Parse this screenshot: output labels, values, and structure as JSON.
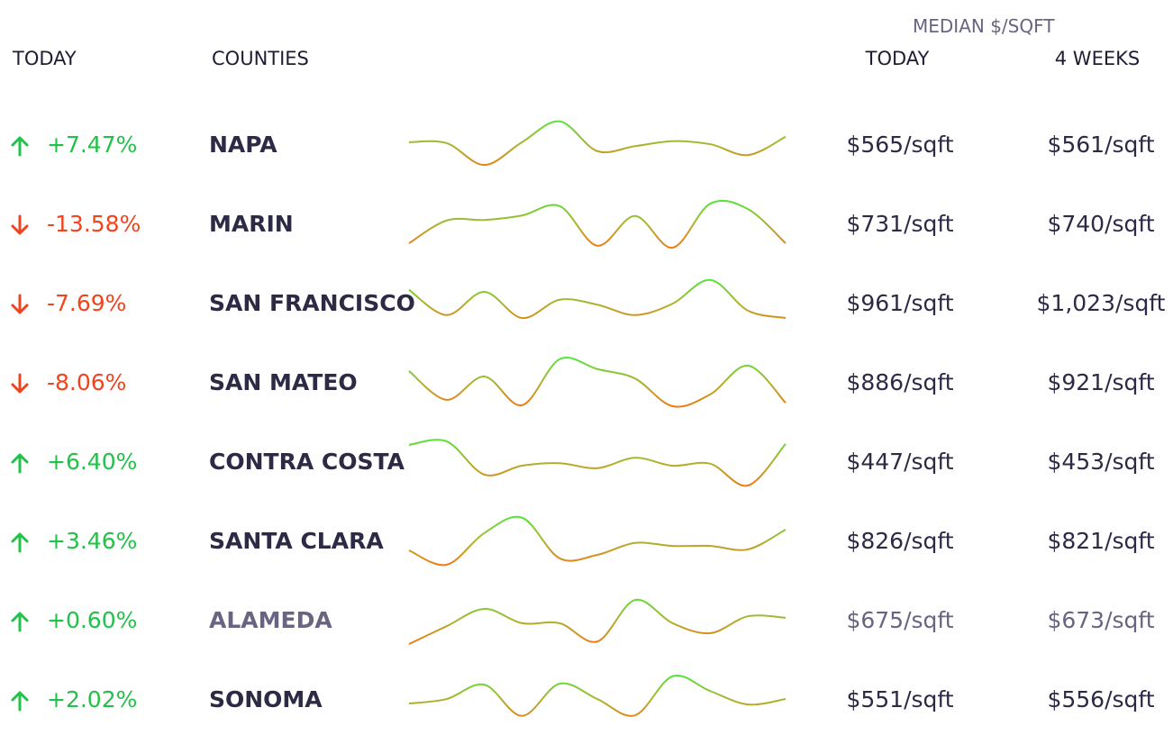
{
  "header": {
    "median_label": "MEDIAN $/SQFT",
    "today_left": "TODAY",
    "counties": "COUNTIES",
    "today": "TODAY",
    "four_weeks": "4 WEEKS"
  },
  "rows": [
    {
      "change": "+7.47%",
      "county": "NAPA",
      "today": "$565/sqft",
      "four_weeks": "$561/sqft",
      "trend": [
        5.3,
        5.1,
        0.7,
        5.3,
        9.5,
        3.5,
        4.5,
        5.5,
        4.9,
        2.7,
        6.4
      ]
    },
    {
      "change": "-13.58%",
      "county": "MARIN",
      "today": "$731/sqft",
      "four_weeks": "$740/sqft",
      "trend": [
        0.9,
        5.5,
        5.6,
        6.5,
        8.4,
        0.4,
        6.4,
        0,
        8.9,
        7.8,
        0.9
      ]
    },
    {
      "change": "-7.69%",
      "county": "SAN FRANCISCO",
      "today": "$961/sqft",
      "four_weeks": "$1,023/sqft",
      "trend": [
        7.5,
        2.4,
        7.1,
        1.8,
        5.5,
        4.5,
        2.4,
        4.7,
        9.5,
        3.3,
        1.8
      ]
    },
    {
      "change": "-8.06%",
      "county": "SAN MATEO",
      "today": "$886/sqft",
      "four_weeks": "$921/sqft",
      "trend": [
        7.1,
        1.3,
        6,
        0.2,
        9.5,
        7.5,
        5.6,
        0,
        2.4,
        8.2,
        0.7
      ]
    },
    {
      "change": "+6.40%",
      "county": "CONTRA COSTA",
      "today": "$447/sqft",
      "four_weeks": "$453/sqft",
      "trend": [
        8.2,
        8.9,
        2.2,
        4,
        4.5,
        3.5,
        5.6,
        4,
        4.4,
        0,
        8.4
      ]
    },
    {
      "change": "+3.46%",
      "county": "SANTA CLARA",
      "today": "$826/sqft",
      "four_weeks": "$821/sqft",
      "trend": [
        2.9,
        0,
        6.4,
        9.5,
        1.3,
        2,
        4.4,
        3.8,
        3.8,
        3.1,
        7.1
      ]
    },
    {
      "change": "+0.60%",
      "county": "ALAMEDA",
      "today": "$675/sqft",
      "four_weeks": "$673/sqft",
      "trend": [
        0,
        3.6,
        7.1,
        4.2,
        4.2,
        0.5,
        8.9,
        4.2,
        2.2,
        5.6,
        5.3
      ]
    },
    {
      "change": "+2.02%",
      "county": "SONOMA",
      "today": "$551/sqft",
      "four_weeks": "$556/sqft",
      "trend": [
        4,
        4.9,
        7.8,
        1.5,
        8,
        4.9,
        1.6,
        9.5,
        6.5,
        3.8,
        4.9
      ]
    }
  ]
}
